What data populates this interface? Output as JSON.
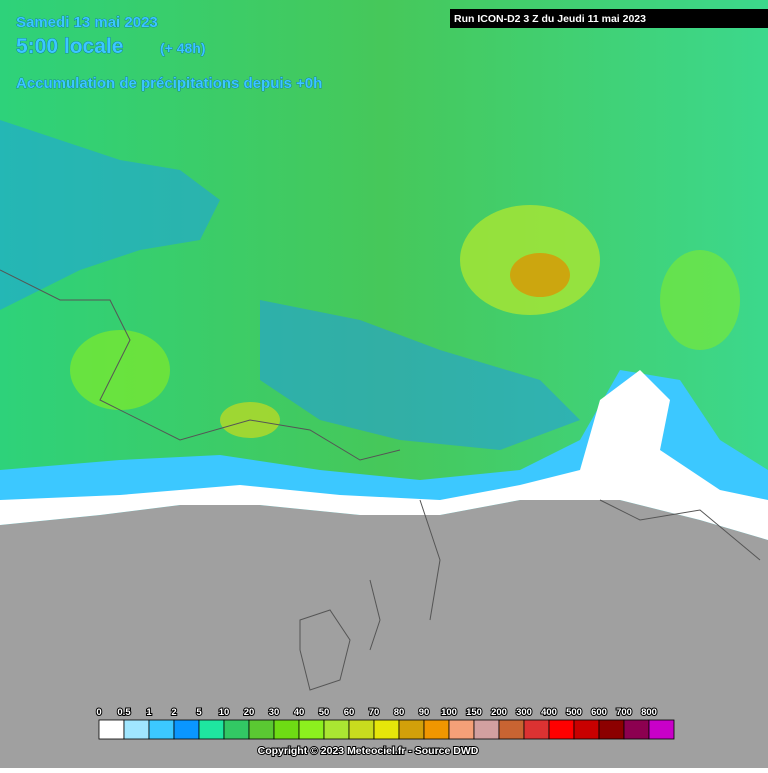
{
  "header": {
    "date": "Samedi 13 mai 2023",
    "time": "5:00 locale",
    "lead": "(+ 48h)",
    "product": "Accumulation de précipitations depuis +0h"
  },
  "run": "Run ICON-D2 3 Z du Jeudi 11 mai 2023",
  "legend": {
    "ticks": [
      0,
      0.5,
      1,
      2,
      5,
      10,
      20,
      30,
      40,
      50,
      60,
      70,
      80,
      90,
      100,
      150,
      200,
      300,
      400,
      500,
      600,
      700,
      800
    ],
    "colors": [
      "#ffffff",
      "#a0e6ff",
      "#3cc8ff",
      "#0a96ff",
      "#1ee6a0",
      "#32c864",
      "#5ac832",
      "#6edc14",
      "#8cf01e",
      "#aae632",
      "#c8dc1e",
      "#e6e60a",
      "#d2a00a",
      "#f09600",
      "#f5a078",
      "#d2a0a0",
      "#c86432",
      "#dc3232",
      "#ff0000",
      "#c80000",
      "#8c0000",
      "#8c0050",
      "#c800c8"
    ]
  },
  "copyright": "Copyright © 2023 Meteociel.fr - Source DWD"
}
